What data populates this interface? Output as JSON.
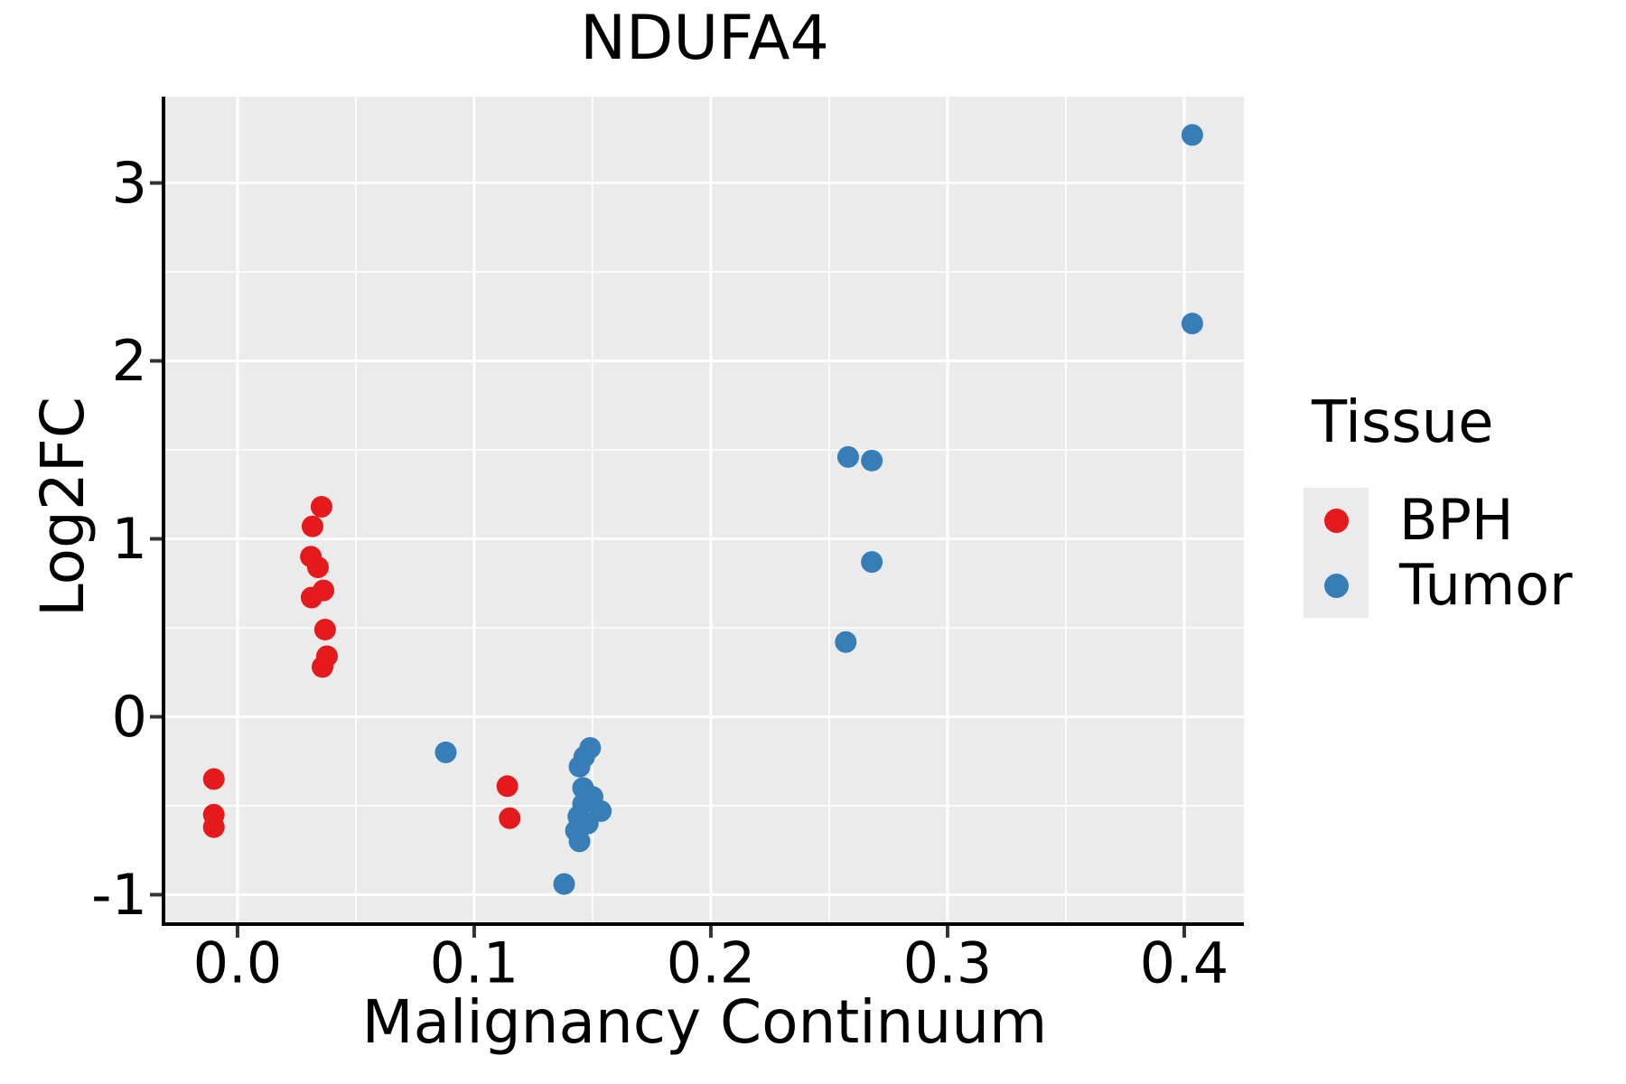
{
  "page": {
    "title": "NDUFA4"
  },
  "chart_data": {
    "type": "scatter",
    "title": "NDUFA4",
    "xlabel": "Malignancy Continuum",
    "ylabel": "Log2FC",
    "xlim": [
      -0.0305,
      0.4252
    ],
    "ylim": [
      -1.155,
      3.485
    ],
    "x_ticks": {
      "values": [
        0.0,
        0.1,
        0.2,
        0.3,
        0.4
      ],
      "labels": [
        "0.0",
        "0.1",
        "0.2",
        "0.3",
        "0.4"
      ],
      "minor": [
        0.05,
        0.15,
        0.25,
        0.35
      ]
    },
    "y_ticks": {
      "values": [
        -1,
        0,
        1,
        2,
        3
      ],
      "labels": [
        "-1",
        "0",
        "1",
        "2",
        "3"
      ],
      "minor": [
        -0.5,
        0.5,
        1.5,
        2.5
      ]
    },
    "grid": {
      "major": true,
      "minor": true,
      "color": "#FFFFFF"
    },
    "legend": {
      "title": "Tissue",
      "position": "right"
    },
    "style": {
      "panel_bg": "#EBEBEB",
      "grid_color": "#FFFFFF",
      "spine_color": "#000000",
      "tick_color": "#333333",
      "text_color": "#000000",
      "marker_radius_px": 12
    },
    "series": [
      {
        "name": "BPH",
        "color": "#E41A1C",
        "points": [
          [
            -0.01,
            -0.35
          ],
          [
            -0.01,
            -0.55
          ],
          [
            -0.01,
            -0.62
          ],
          [
            0.0355,
            1.18
          ],
          [
            0.0317,
            1.07
          ],
          [
            0.031,
            0.9
          ],
          [
            0.034,
            0.84
          ],
          [
            0.0363,
            0.71
          ],
          [
            0.0313,
            0.67
          ],
          [
            0.037,
            0.49
          ],
          [
            0.0378,
            0.34
          ],
          [
            0.0359,
            0.28
          ],
          [
            0.114,
            -0.39
          ],
          [
            0.115,
            -0.57
          ]
        ]
      },
      {
        "name": "Tumor",
        "color": "#377EB8",
        "points": [
          [
            0.088,
            -0.2
          ],
          [
            0.149,
            -0.175
          ],
          [
            0.1465,
            -0.225
          ],
          [
            0.1445,
            -0.28
          ],
          [
            0.146,
            -0.4
          ],
          [
            0.15,
            -0.45
          ],
          [
            0.146,
            -0.49
          ],
          [
            0.1535,
            -0.53
          ],
          [
            0.144,
            -0.56
          ],
          [
            0.148,
            -0.6
          ],
          [
            0.143,
            -0.64
          ],
          [
            0.1445,
            -0.7
          ],
          [
            0.138,
            -0.94
          ],
          [
            0.258,
            1.46
          ],
          [
            0.268,
            1.44
          ],
          [
            0.268,
            0.87
          ],
          [
            0.257,
            0.42
          ],
          [
            0.4034,
            3.27
          ],
          [
            0.4034,
            2.21
          ]
        ]
      }
    ]
  }
}
